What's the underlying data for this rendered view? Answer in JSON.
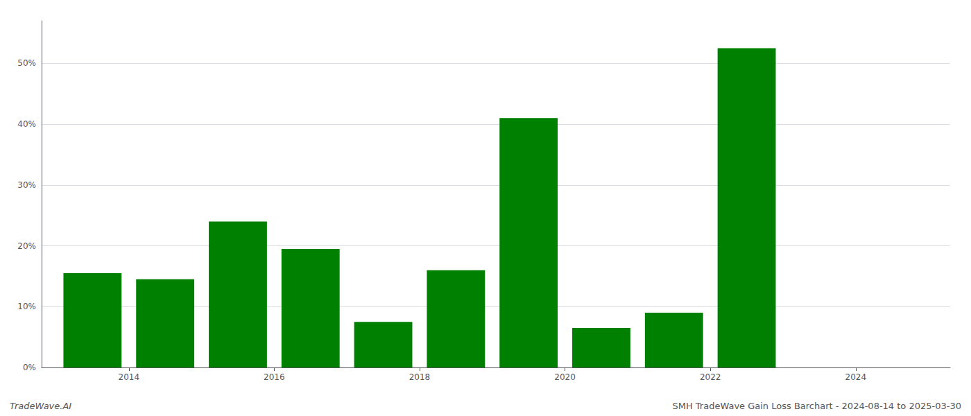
{
  "chart_data": {
    "type": "bar",
    "x": [
      2013,
      2014,
      2015,
      2016,
      2017,
      2018,
      2019,
      2020,
      2021,
      2022
    ],
    "values": [
      15.5,
      14.5,
      24.0,
      19.5,
      7.5,
      16.0,
      41.0,
      6.5,
      9.0,
      52.5
    ],
    "color": "#008000",
    "xlim": [
      2012.3,
      2024.8
    ],
    "xticks": [
      {
        "value": 2013.5,
        "label": "2014"
      },
      {
        "value": 2015.5,
        "label": "2016"
      },
      {
        "value": 2017.5,
        "label": "2018"
      },
      {
        "value": 2019.5,
        "label": "2020"
      },
      {
        "value": 2021.5,
        "label": "2022"
      },
      {
        "value": 2023.5,
        "label": "2024"
      }
    ],
    "ylim": [
      0,
      57
    ],
    "yticks": [
      {
        "value": 0,
        "label": "0%"
      },
      {
        "value": 10,
        "label": "10%"
      },
      {
        "value": 20,
        "label": "20%"
      },
      {
        "value": 30,
        "label": "30%"
      },
      {
        "value": 40,
        "label": "40%"
      },
      {
        "value": 50,
        "label": "50%"
      }
    ],
    "grid": true,
    "annotations": [
      "TradeWave.AI",
      "SMH TradeWave Gain Loss Barchart - 2024-08-14 to 2025-03-30"
    ]
  }
}
